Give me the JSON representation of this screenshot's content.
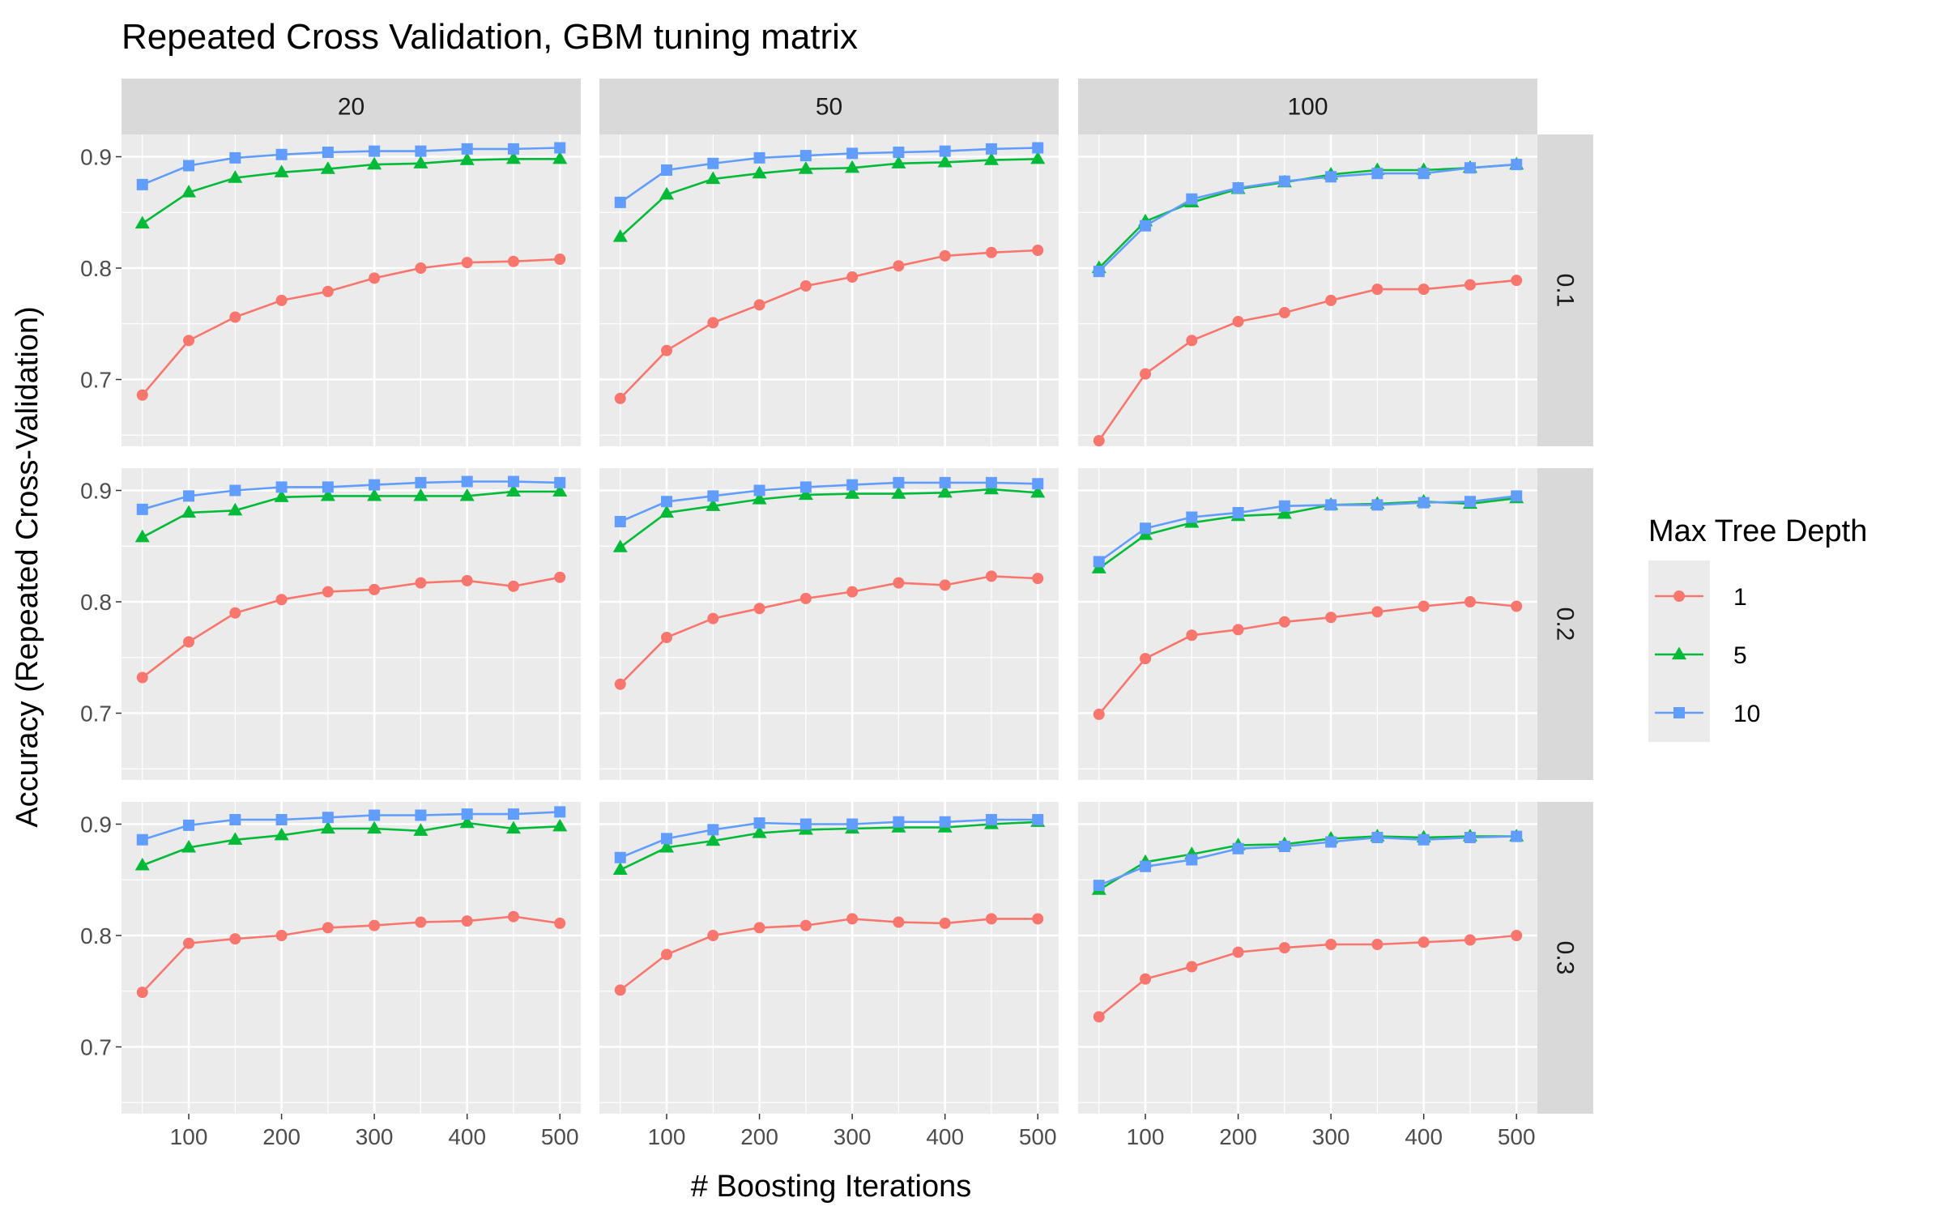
{
  "chart_data": {
    "type": "line",
    "title": "Repeated Cross Validation, GBM tuning matrix",
    "xlabel": "# Boosting Iterations",
    "ylabel": "Accuracy (Repeated Cross-Validation)",
    "x": [
      50,
      100,
      150,
      200,
      250,
      300,
      350,
      400,
      450,
      500
    ],
    "x_ticks": [
      100,
      200,
      300,
      400,
      500
    ],
    "y_ticks": [
      0.7,
      0.8,
      0.9
    ],
    "y_tick_labels": [
      "0.7",
      "0.8",
      "0.9"
    ],
    "xlim": [
      27.5,
      522.5
    ],
    "ylim": [
      0.64,
      0.92
    ],
    "grid": true,
    "facet_columns": [
      "20",
      "50",
      "100"
    ],
    "facet_rows": [
      "0.1",
      "0.2",
      "0.3"
    ],
    "legend": {
      "title": "Max Tree Depth",
      "placement": "right",
      "entries": [
        {
          "label": "1",
          "color": "#F8766D",
          "marker": "circle"
        },
        {
          "label": "5",
          "color": "#00BA38",
          "marker": "triangle"
        },
        {
          "label": "10",
          "color": "#619CFF",
          "marker": "square"
        }
      ]
    },
    "panels": [
      {
        "row": "0.1",
        "col": "20",
        "series": [
          {
            "name": "1",
            "values": [
              0.686,
              0.735,
              0.756,
              0.771,
              0.779,
              0.791,
              0.8,
              0.805,
              0.806,
              0.808
            ]
          },
          {
            "name": "5",
            "values": [
              0.84,
              0.868,
              0.881,
              0.886,
              0.889,
              0.893,
              0.894,
              0.897,
              0.898,
              0.898
            ]
          },
          {
            "name": "10",
            "values": [
              0.875,
              0.892,
              0.899,
              0.902,
              0.904,
              0.905,
              0.905,
              0.907,
              0.907,
              0.908
            ]
          }
        ]
      },
      {
        "row": "0.1",
        "col": "50",
        "series": [
          {
            "name": "1",
            "values": [
              0.683,
              0.726,
              0.751,
              0.767,
              0.784,
              0.792,
              0.802,
              0.811,
              0.814,
              0.816
            ]
          },
          {
            "name": "5",
            "values": [
              0.828,
              0.866,
              0.88,
              0.885,
              0.889,
              0.89,
              0.894,
              0.895,
              0.897,
              0.898
            ]
          },
          {
            "name": "10",
            "values": [
              0.859,
              0.888,
              0.894,
              0.899,
              0.901,
              0.903,
              0.904,
              0.905,
              0.907,
              0.908
            ]
          }
        ]
      },
      {
        "row": "0.1",
        "col": "100",
        "series": [
          {
            "name": "1",
            "values": [
              0.645,
              0.705,
              0.735,
              0.752,
              0.76,
              0.771,
              0.781,
              0.781,
              0.785,
              0.789
            ]
          },
          {
            "name": "5",
            "values": [
              0.8,
              0.842,
              0.859,
              0.871,
              0.877,
              0.884,
              0.888,
              0.888,
              0.89,
              0.893
            ]
          },
          {
            "name": "10",
            "values": [
              0.797,
              0.838,
              0.862,
              0.872,
              0.878,
              0.882,
              0.885,
              0.885,
              0.89,
              0.893
            ]
          }
        ]
      },
      {
        "row": "0.2",
        "col": "20",
        "series": [
          {
            "name": "1",
            "values": [
              0.732,
              0.764,
              0.79,
              0.802,
              0.809,
              0.811,
              0.817,
              0.819,
              0.814,
              0.822
            ]
          },
          {
            "name": "5",
            "values": [
              0.858,
              0.88,
              0.882,
              0.894,
              0.895,
              0.895,
              0.895,
              0.895,
              0.899,
              0.899
            ]
          },
          {
            "name": "10",
            "values": [
              0.883,
              0.895,
              0.9,
              0.903,
              0.903,
              0.905,
              0.907,
              0.908,
              0.908,
              0.907
            ]
          }
        ]
      },
      {
        "row": "0.2",
        "col": "50",
        "series": [
          {
            "name": "1",
            "values": [
              0.726,
              0.768,
              0.785,
              0.794,
              0.803,
              0.809,
              0.817,
              0.815,
              0.823,
              0.821
            ]
          },
          {
            "name": "5",
            "values": [
              0.849,
              0.88,
              0.886,
              0.892,
              0.896,
              0.897,
              0.897,
              0.898,
              0.901,
              0.898
            ]
          },
          {
            "name": "10",
            "values": [
              0.872,
              0.89,
              0.895,
              0.9,
              0.903,
              0.905,
              0.907,
              0.907,
              0.907,
              0.906
            ]
          }
        ]
      },
      {
        "row": "0.2",
        "col": "100",
        "series": [
          {
            "name": "1",
            "values": [
              0.699,
              0.749,
              0.77,
              0.775,
              0.782,
              0.786,
              0.791,
              0.796,
              0.8,
              0.796
            ]
          },
          {
            "name": "5",
            "values": [
              0.83,
              0.86,
              0.871,
              0.877,
              0.879,
              0.887,
              0.888,
              0.89,
              0.888,
              0.893
            ]
          },
          {
            "name": "10",
            "values": [
              0.836,
              0.866,
              0.876,
              0.88,
              0.886,
              0.887,
              0.887,
              0.889,
              0.89,
              0.895
            ]
          }
        ]
      },
      {
        "row": "0.3",
        "col": "20",
        "series": [
          {
            "name": "1",
            "values": [
              0.749,
              0.793,
              0.797,
              0.8,
              0.807,
              0.809,
              0.812,
              0.813,
              0.817,
              0.811
            ]
          },
          {
            "name": "5",
            "values": [
              0.863,
              0.879,
              0.886,
              0.89,
              0.896,
              0.896,
              0.894,
              0.901,
              0.896,
              0.898
            ]
          },
          {
            "name": "10",
            "values": [
              0.886,
              0.899,
              0.904,
              0.904,
              0.906,
              0.908,
              0.908,
              0.909,
              0.909,
              0.911
            ]
          }
        ]
      },
      {
        "row": "0.3",
        "col": "50",
        "series": [
          {
            "name": "1",
            "values": [
              0.751,
              0.783,
              0.8,
              0.807,
              0.809,
              0.815,
              0.812,
              0.811,
              0.815,
              0.815
            ]
          },
          {
            "name": "5",
            "values": [
              0.859,
              0.879,
              0.885,
              0.892,
              0.895,
              0.896,
              0.897,
              0.897,
              0.9,
              0.902
            ]
          },
          {
            "name": "10",
            "values": [
              0.87,
              0.887,
              0.895,
              0.901,
              0.9,
              0.9,
              0.902,
              0.902,
              0.904,
              0.904
            ]
          }
        ]
      },
      {
        "row": "0.3",
        "col": "100",
        "series": [
          {
            "name": "1",
            "values": [
              0.727,
              0.761,
              0.772,
              0.785,
              0.789,
              0.792,
              0.792,
              0.794,
              0.796,
              0.8
            ]
          },
          {
            "name": "5",
            "values": [
              0.841,
              0.866,
              0.873,
              0.881,
              0.882,
              0.887,
              0.889,
              0.888,
              0.889,
              0.889
            ]
          },
          {
            "name": "10",
            "values": [
              0.845,
              0.862,
              0.868,
              0.878,
              0.88,
              0.884,
              0.888,
              0.886,
              0.888,
              0.889
            ]
          }
        ]
      }
    ]
  }
}
